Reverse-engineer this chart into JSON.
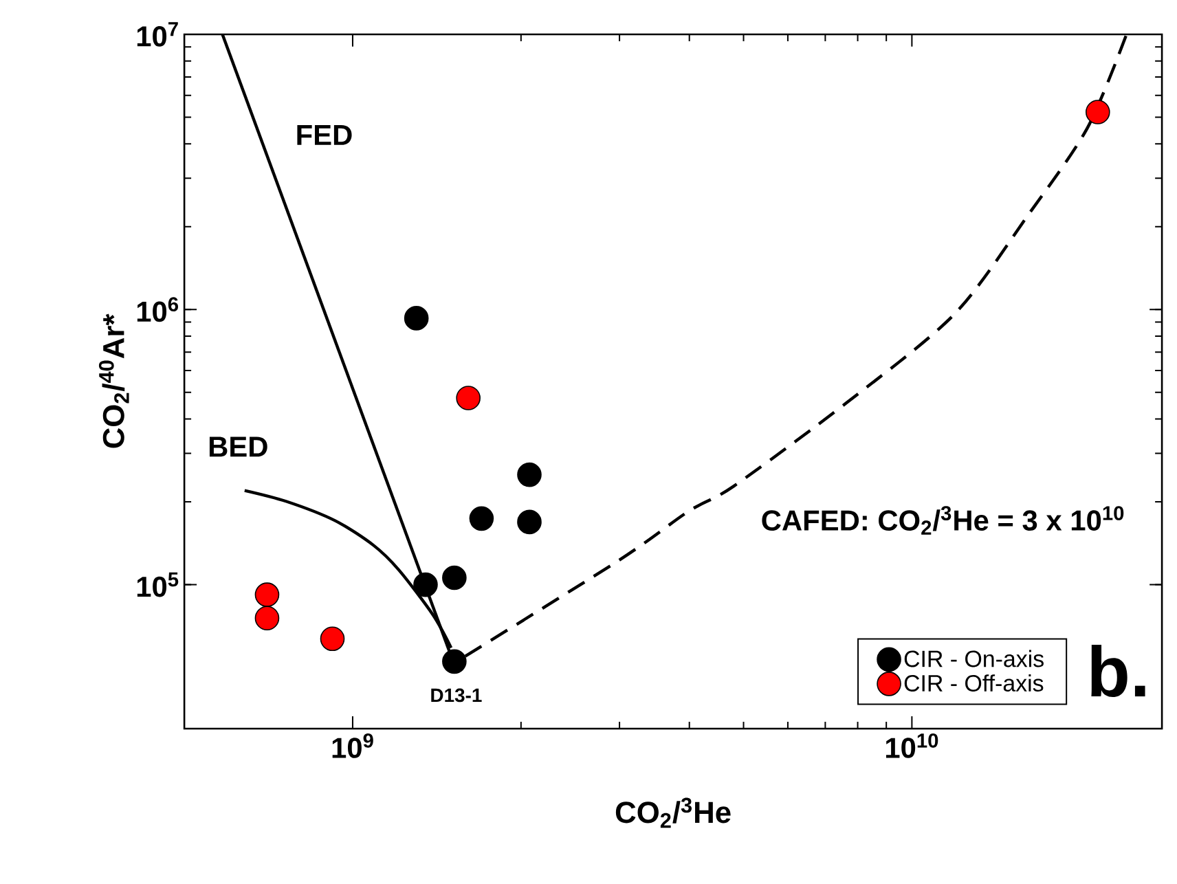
{
  "chart_data": {
    "type": "scatter",
    "xlabel": "CO$_{2}$/$^{3}$He",
    "ylabel": "CO$_{2}$/$^{40}$Ar*",
    "log": "xy",
    "xlim": [
      500000000,
      28000000000
    ],
    "ylim": [
      30000,
      10000000
    ],
    "xticks": [
      {
        "value": 1000000000,
        "label": "10$^{9}$"
      },
      {
        "value": 10000000000,
        "label": "10$^{10}$"
      }
    ],
    "yticks": [
      {
        "value": 100000,
        "label": "10$^{5}$"
      },
      {
        "value": 1000000,
        "label": "10$^{6}$"
      },
      {
        "value": 10000000,
        "label": "10$^{7}$"
      }
    ],
    "legend": "bottom right",
    "series": [
      {
        "type": "line",
        "marker": "none",
        "line_style": "solid",
        "color": "#000000",
        "x": [
          585000000,
          1500000000
        ],
        "values": [
          10000000,
          55000
        ]
      },
      {
        "type": "line",
        "marker": "none",
        "line_style": "solid",
        "color": "#000000",
        "x": [
          641000000,
          760000000,
          930000000,
          1090000000,
          1210000000,
          1390000000,
          1500000000
        ],
        "values": [
          220000,
          201000,
          171000,
          139000,
          113000,
          78000,
          59000
        ]
      },
      {
        "type": "line",
        "marker": "none",
        "line_style": "dashed",
        "color": "#000000",
        "x": [
          1590000000,
          3000000000,
          3990000000,
          4800000000,
          7640000000,
          11900000000,
          16100000000,
          20600000000,
          24200000000
        ],
        "values": [
          55000,
          123000,
          185000,
          228000,
          458000,
          960000,
          2190000,
          4570000,
          10000000
        ]
      },
      {
        "marker": "circle",
        "name": "CIR - On-axis",
        "color": "#000000",
        "x": [
          1300000000,
          2070000000,
          1700000000,
          2070000000,
          1350000000,
          1520000000,
          1520000000
        ],
        "values": [
          930000,
          251000,
          174000,
          169000,
          100000,
          106000,
          52600
        ]
      },
      {
        "marker": "circle",
        "name": "CIR - Off-axis",
        "color": "#ff0000",
        "x": [
          1610000000,
          703000000,
          703000000,
          920000000,
          21500000000
        ],
        "values": [
          477000,
          92000,
          75600,
          63600,
          5220000
        ]
      }
    ],
    "annotations": [
      "FED",
      "BED",
      "D13-1",
      "CAFED: CO$_{2}$/$^{3}$He = 3 x 10$^{10}$",
      "b."
    ]
  }
}
